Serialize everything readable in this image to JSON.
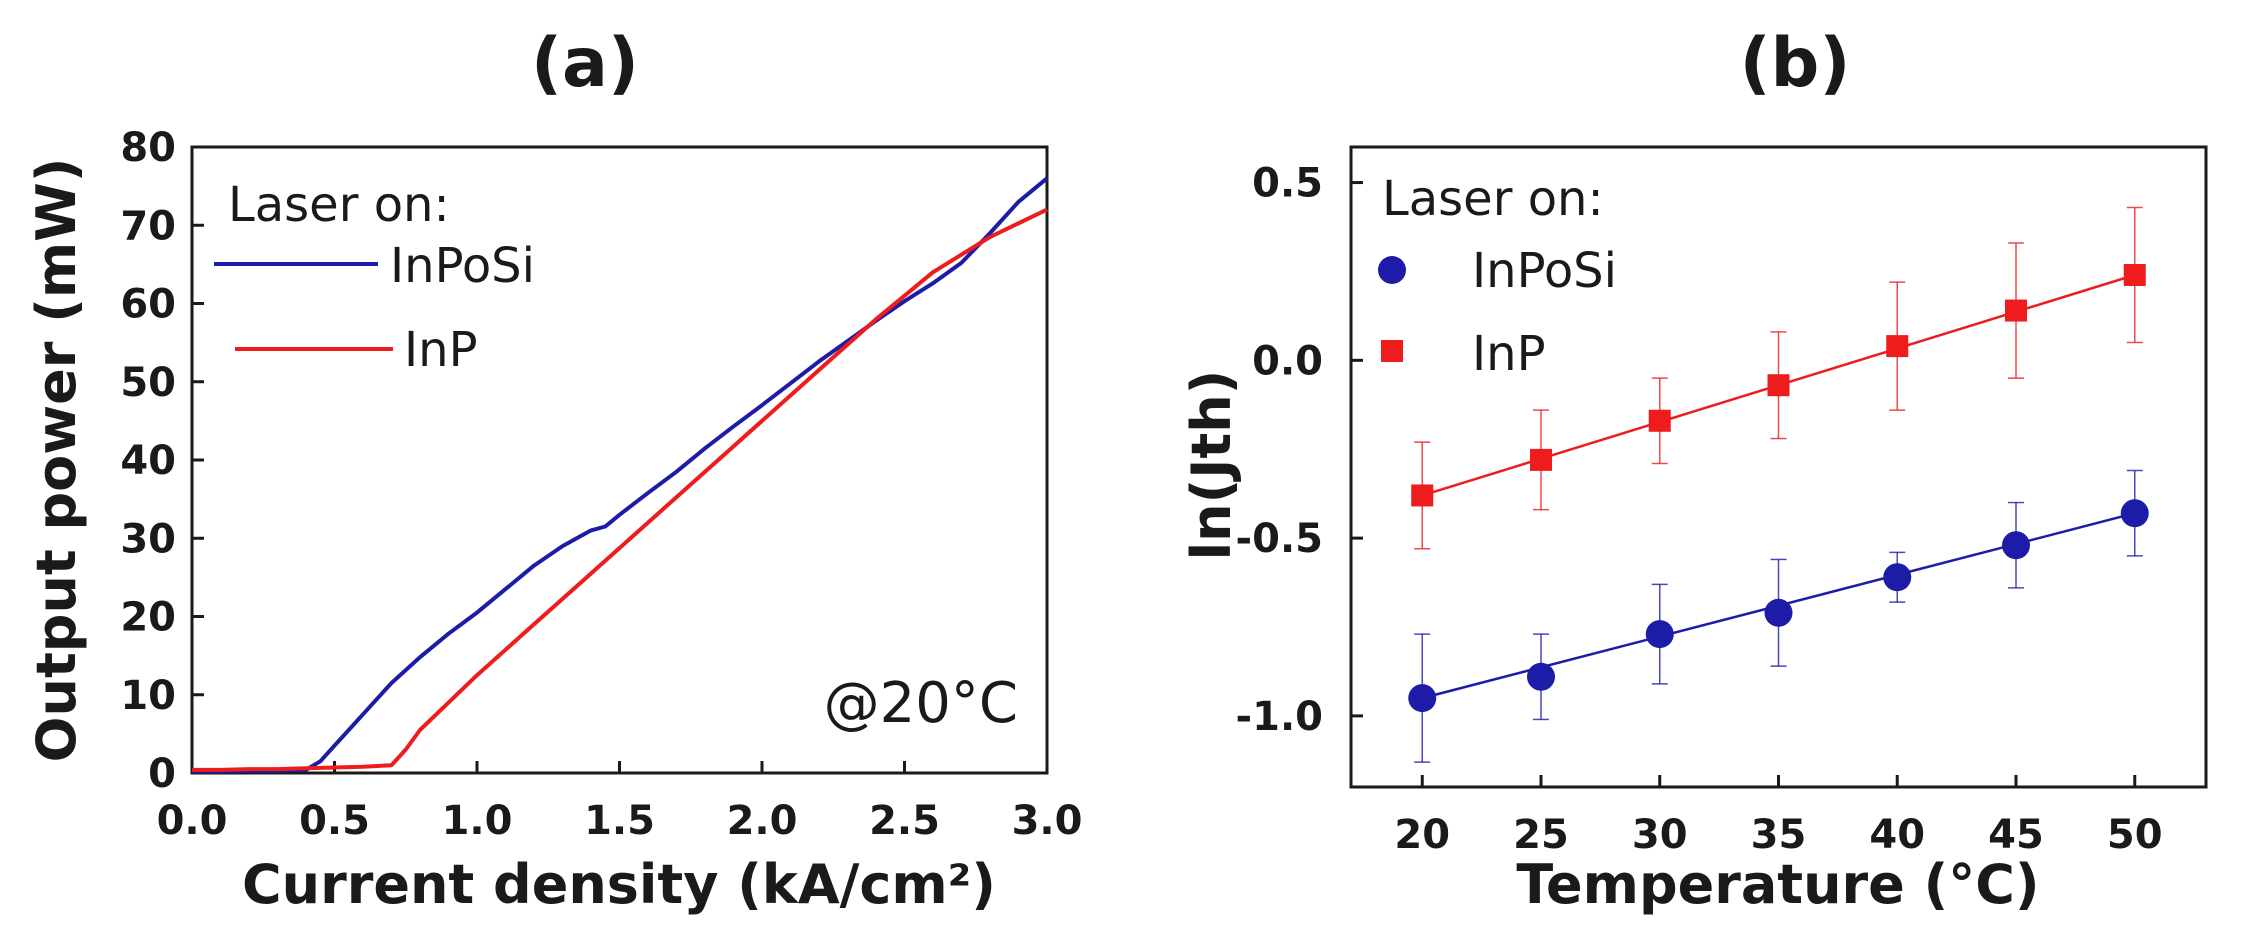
{
  "chart_data": [
    {
      "type": "line",
      "panel": "(a)",
      "xlabel": "Current density (kA/cm²)",
      "ylabel": "Output power (mW)",
      "xlim": [
        0.0,
        3.0
      ],
      "ylim": [
        0,
        80
      ],
      "xticks": [
        "0.0",
        "0.5",
        "1.0",
        "1.5",
        "2.0",
        "2.5",
        "3.0"
      ],
      "yticks": [
        "0",
        "10",
        "20",
        "30",
        "40",
        "50",
        "60",
        "70",
        "80"
      ],
      "legend_title": "Laser on:",
      "annotation": "@20°C",
      "grid": false,
      "series": [
        {
          "name": "InPoSi",
          "color": "#1c1ca8",
          "x": [
            0.0,
            0.1,
            0.2,
            0.3,
            0.4,
            0.45,
            0.5,
            0.6,
            0.7,
            0.8,
            0.9,
            1.0,
            1.1,
            1.2,
            1.3,
            1.4,
            1.45,
            1.5,
            1.6,
            1.7,
            1.8,
            1.9,
            2.0,
            2.1,
            2.2,
            2.3,
            2.4,
            2.5,
            2.6,
            2.7,
            2.8,
            2.9,
            3.0
          ],
          "y": [
            0.2,
            0.2,
            0.3,
            0.3,
            0.4,
            1.5,
            3.5,
            7.5,
            11.5,
            14.8,
            17.8,
            20.5,
            23.5,
            26.5,
            29.0,
            31.0,
            31.5,
            33.0,
            35.8,
            38.5,
            41.5,
            44.3,
            47.0,
            49.8,
            52.6,
            55.2,
            57.8,
            60.3,
            62.6,
            65.2,
            69.0,
            73.0,
            76.0
          ]
        },
        {
          "name": "InP",
          "color": "#ee1c1c",
          "x": [
            0.0,
            0.1,
            0.2,
            0.3,
            0.4,
            0.5,
            0.6,
            0.7,
            0.75,
            0.8,
            0.9,
            1.0,
            1.2,
            1.4,
            1.6,
            1.8,
            2.0,
            2.2,
            2.4,
            2.6,
            2.8,
            3.0
          ],
          "y": [
            0.4,
            0.4,
            0.5,
            0.5,
            0.6,
            0.7,
            0.8,
            1.0,
            3.0,
            5.5,
            9.0,
            12.5,
            19.0,
            25.5,
            32.0,
            38.5,
            45.0,
            51.5,
            58.0,
            64.0,
            68.5,
            72.0
          ]
        }
      ]
    },
    {
      "type": "scatter",
      "panel": "(b)",
      "xlabel": "Temperature (°C)",
      "ylabel": "ln(Jth)",
      "xlim": [
        17,
        53
      ],
      "ylim": [
        -1.2,
        0.6
      ],
      "xticks": [
        "20",
        "25",
        "30",
        "35",
        "40",
        "45",
        "50"
      ],
      "yticks": [
        "-1.0",
        "-0.5",
        "0.0",
        "0.5"
      ],
      "legend_title": "Laser on:",
      "grid": false,
      "series": [
        {
          "name": "InPoSi",
          "color": "#1c1ca8",
          "marker": "circle",
          "x": [
            20,
            25,
            30,
            35,
            40,
            45,
            50
          ],
          "y": [
            -0.95,
            -0.89,
            -0.77,
            -0.71,
            -0.61,
            -0.52,
            -0.43
          ],
          "err": [
            0.18,
            0.12,
            0.14,
            0.15,
            0.07,
            0.12,
            0.12
          ]
        },
        {
          "name": "InP",
          "color": "#ee1c1c",
          "marker": "square",
          "x": [
            20,
            25,
            30,
            35,
            40,
            45,
            50
          ],
          "y": [
            -0.38,
            -0.28,
            -0.17,
            -0.07,
            0.04,
            0.14,
            0.24
          ],
          "err": [
            0.15,
            0.14,
            0.12,
            0.15,
            0.18,
            0.19,
            0.19
          ]
        }
      ]
    }
  ]
}
